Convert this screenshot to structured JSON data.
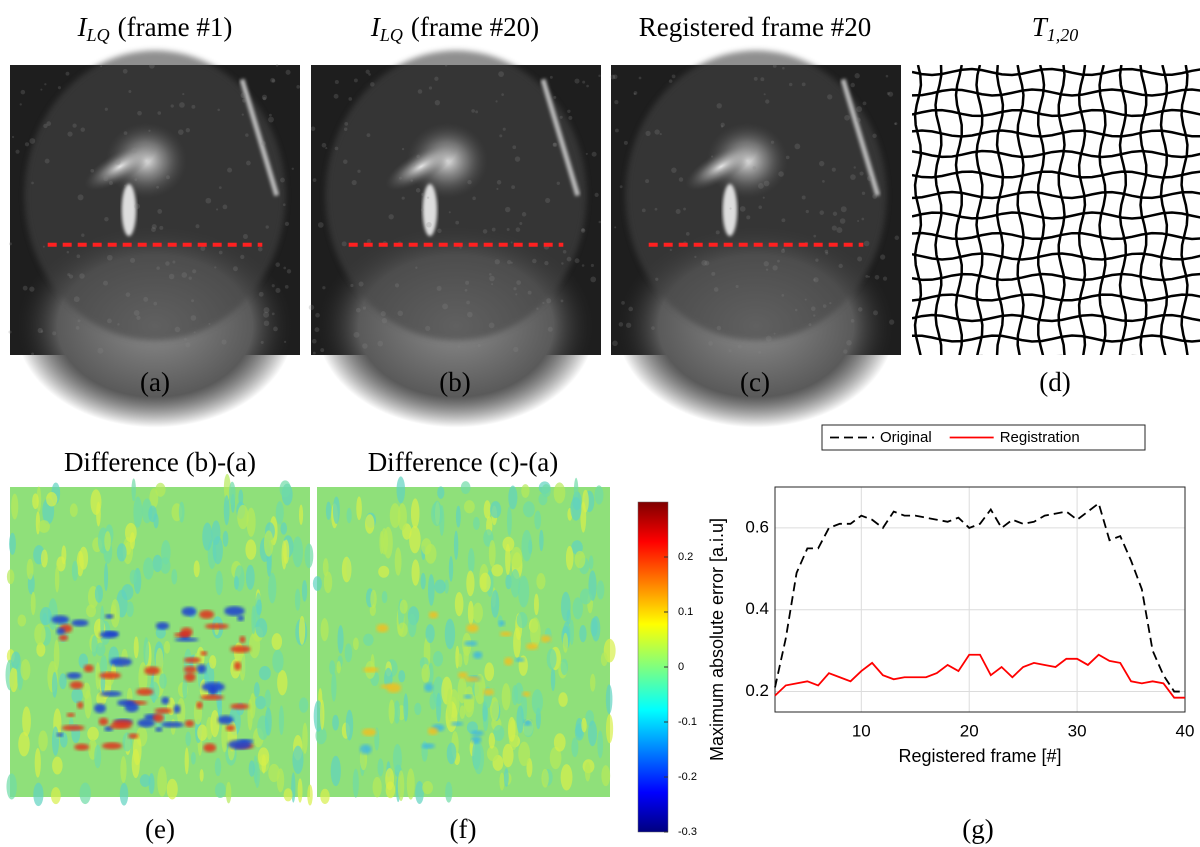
{
  "panels": [
    {
      "title": {
        "symbol": "I",
        "subscript": "LQ",
        "text": "(frame #1)"
      },
      "caption": "(a)"
    },
    {
      "title": {
        "symbol": "I",
        "subscript": "LQ",
        "text": "(frame #20)"
      },
      "caption": "(b)"
    },
    {
      "title": {
        "text": "Registered frame #20"
      },
      "caption": "(c)"
    },
    {
      "title": {
        "symbol": "T",
        "subscript": "1,20"
      },
      "caption": "(d)"
    },
    {
      "title": {
        "text": "Difference (b)-(a)"
      },
      "caption": "(e)"
    },
    {
      "title": {
        "text": "Difference (c)-(a)"
      },
      "caption": "(f)"
    },
    {
      "caption": "(g)"
    }
  ],
  "colorbar": {
    "lim": [
      -0.3,
      0.3
    ],
    "ticks": [
      0.2,
      0.1,
      0,
      -0.1,
      -0.2,
      -0.3
    ]
  },
  "chart_data": {
    "type": "line",
    "x_label": "Registered frame [#]",
    "y_label": "Maximum absolute error [a.i.u]",
    "x": [
      2,
      3,
      4,
      5,
      6,
      7,
      8,
      9,
      10,
      11,
      12,
      13,
      14,
      15,
      16,
      17,
      18,
      19,
      20,
      21,
      22,
      23,
      24,
      25,
      26,
      27,
      28,
      29,
      30,
      31,
      32,
      33,
      34,
      35,
      36,
      37,
      38,
      39,
      40
    ],
    "series": [
      {
        "name": "Original",
        "color": "#000000",
        "linestyle": "dashed",
        "values": [
          0.21,
          0.33,
          0.49,
          0.55,
          0.55,
          0.6,
          0.61,
          0.61,
          0.63,
          0.62,
          0.6,
          0.64,
          0.63,
          0.63,
          0.625,
          0.62,
          0.615,
          0.625,
          0.6,
          0.61,
          0.645,
          0.6,
          0.62,
          0.61,
          0.615,
          0.63,
          0.635,
          0.64,
          0.62,
          0.64,
          0.66,
          0.57,
          0.58,
          0.52,
          0.45,
          0.3,
          0.24,
          0.2,
          0.2
        ]
      },
      {
        "name": "Registration",
        "color": "#ff0000",
        "linestyle": "solid",
        "values": [
          0.19,
          0.215,
          0.22,
          0.225,
          0.215,
          0.245,
          0.235,
          0.225,
          0.25,
          0.27,
          0.24,
          0.23,
          0.235,
          0.235,
          0.235,
          0.245,
          0.265,
          0.25,
          0.29,
          0.29,
          0.24,
          0.26,
          0.235,
          0.26,
          0.27,
          0.265,
          0.26,
          0.28,
          0.28,
          0.265,
          0.29,
          0.275,
          0.27,
          0.225,
          0.22,
          0.225,
          0.22,
          0.185,
          0.185
        ]
      }
    ],
    "xlim": [
      2,
      40
    ],
    "ylim": [
      0.15,
      0.7
    ],
    "xticks": [
      10,
      20,
      30,
      40
    ],
    "yticks": [
      0.2,
      0.4,
      0.6
    ],
    "grid": true
  }
}
